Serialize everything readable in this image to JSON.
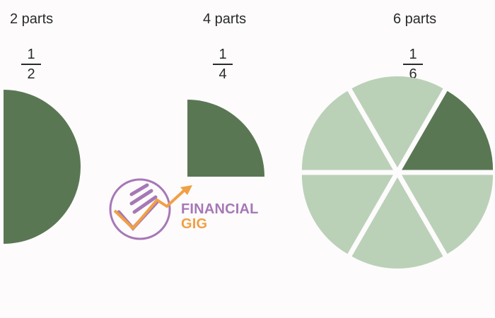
{
  "panels": [
    {
      "label": "2 parts",
      "numerator": "1",
      "denominator": "2",
      "parts": 2,
      "shaded": 1
    },
    {
      "label": "4 parts",
      "numerator": "1",
      "denominator": "4",
      "parts": 4,
      "shaded": 1
    },
    {
      "label": "6 parts",
      "numerator": "1",
      "denominator": "6",
      "parts": 6,
      "shaded": 1
    }
  ],
  "logo": {
    "line1": "FINANCIAL",
    "line2": "GIG"
  },
  "colors": {
    "shaded": "#5a7754",
    "unshaded": "#bad1b8",
    "logo_purple": "#a678b6",
    "logo_orange": "#f0a045"
  }
}
